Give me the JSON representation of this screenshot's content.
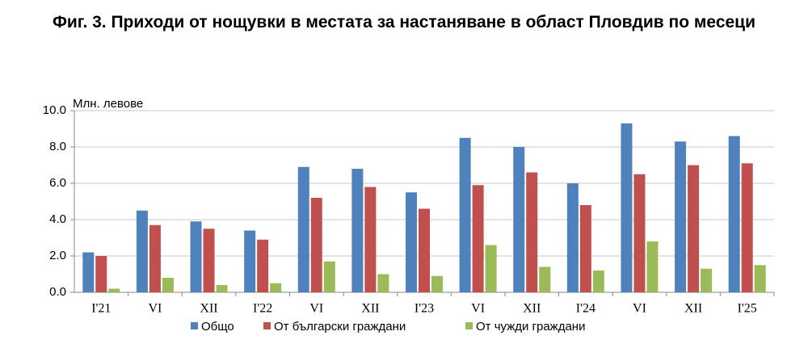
{
  "chart_data": {
    "type": "bar",
    "title": "Фиг. 3. Приходи от нощувки в местата за настаняване в област Пловдив по месеци",
    "y_label": "Млн. левове",
    "categories": [
      "I'21",
      "VI",
      "XII",
      "I'22",
      "VI",
      "XII",
      "I'23",
      "VI",
      "XII",
      "I'24",
      "VI",
      "XII",
      "I'25"
    ],
    "series": [
      {
        "name": "Общо",
        "color": "#4f81bd",
        "values": [
          2.2,
          4.5,
          3.9,
          3.4,
          6.9,
          6.8,
          5.5,
          8.5,
          8.0,
          6.0,
          9.3,
          8.3,
          8.6
        ]
      },
      {
        "name": "От български граждани",
        "color": "#c0504d",
        "values": [
          2.0,
          3.7,
          3.5,
          2.9,
          5.2,
          5.8,
          4.6,
          5.9,
          6.6,
          4.8,
          6.5,
          7.0,
          7.1
        ]
      },
      {
        "name": "От чужди граждани",
        "color": "#9bbb59",
        "values": [
          0.2,
          0.8,
          0.4,
          0.5,
          1.7,
          1.0,
          0.9,
          2.6,
          1.4,
          1.2,
          2.8,
          1.3,
          1.5
        ]
      }
    ],
    "ylim": [
      0,
      10
    ],
    "yticks": [
      {
        "value": 0,
        "label": "0.0"
      },
      {
        "value": 2,
        "label": "2.0"
      },
      {
        "value": 4,
        "label": "4.0"
      },
      {
        "value": 6,
        "label": "6.0"
      },
      {
        "value": 8,
        "label": "8.0"
      },
      {
        "value": 10,
        "label": "10.0"
      }
    ],
    "grid": true,
    "legend": "bottom"
  }
}
